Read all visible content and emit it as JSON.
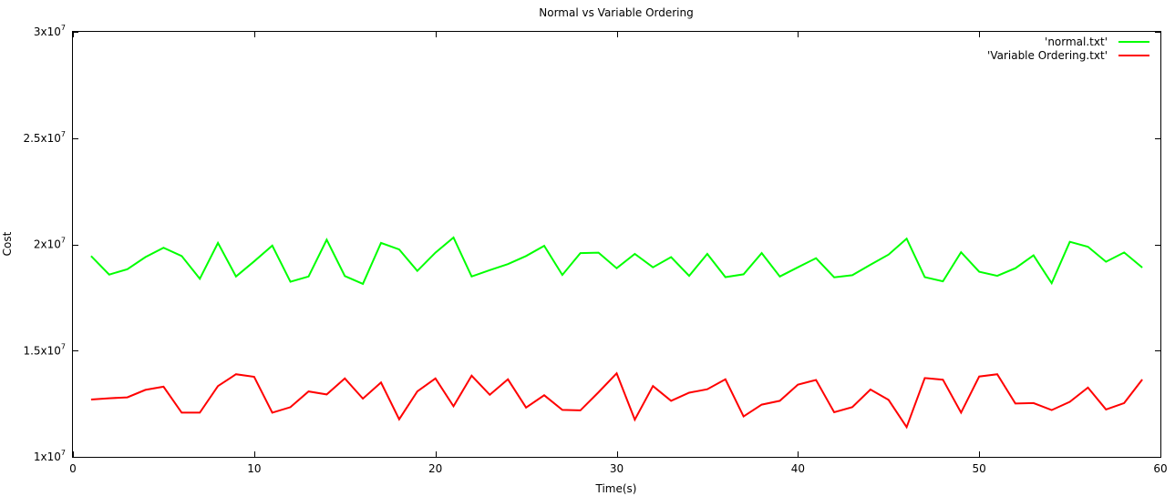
{
  "chart_data": {
    "type": "line",
    "title": "Normal vs Variable Ordering",
    "xlabel": "Time(s)",
    "ylabel": "Cost",
    "xlim": [
      0,
      60
    ],
    "ylim": [
      10000000,
      30000000
    ],
    "x_ticks": [
      {
        "value": 0,
        "label": "0"
      },
      {
        "value": 10,
        "label": "10"
      },
      {
        "value": 20,
        "label": "20"
      },
      {
        "value": 30,
        "label": "30"
      },
      {
        "value": 40,
        "label": "40"
      },
      {
        "value": 50,
        "label": "50"
      },
      {
        "value": 60,
        "label": "60"
      }
    ],
    "y_ticks": [
      {
        "value": 10000000,
        "mantissa": "1x10",
        "exp": "7"
      },
      {
        "value": 15000000,
        "mantissa": "1.5x10",
        "exp": "7"
      },
      {
        "value": 20000000,
        "mantissa": "2x10",
        "exp": "7"
      },
      {
        "value": 25000000,
        "mantissa": "2.5x10",
        "exp": "7"
      },
      {
        "value": 30000000,
        "mantissa": "3x10",
        "exp": "7"
      }
    ],
    "grid": false,
    "legend_position": "top-right",
    "series": [
      {
        "name": "'normal.txt'",
        "color": "#00ff00",
        "x": [
          1,
          2,
          3,
          4,
          5,
          6,
          7,
          8,
          9,
          10,
          11,
          12,
          13,
          14,
          15,
          16,
          17,
          18,
          19,
          20,
          21,
          22,
          23,
          24,
          25,
          26,
          27,
          28,
          29,
          30,
          31,
          32,
          33,
          34,
          35,
          36,
          37,
          38,
          39,
          40,
          41,
          42,
          43,
          44,
          45,
          46,
          47,
          48,
          49,
          50,
          51,
          52,
          53,
          54,
          55,
          56,
          57,
          58,
          59
        ],
        "values": [
          19450000,
          18580000,
          18830000,
          19400000,
          19840000,
          19450000,
          18380000,
          20070000,
          18490000,
          19200000,
          19940000,
          18240000,
          18490000,
          20220000,
          18510000,
          18140000,
          20070000,
          19760000,
          18750000,
          19610000,
          20320000,
          18490000,
          18790000,
          19070000,
          19450000,
          19930000,
          18560000,
          19590000,
          19610000,
          18880000,
          19550000,
          18920000,
          19400000,
          18520000,
          19550000,
          18460000,
          18590000,
          19590000,
          18490000,
          18920000,
          19350000,
          18450000,
          18550000,
          19040000,
          19520000,
          20270000,
          18460000,
          18260000,
          19630000,
          18710000,
          18520000,
          18880000,
          19480000,
          18170000,
          20120000,
          19890000,
          19180000,
          19620000,
          18910000
        ]
      },
      {
        "name": "'Variable Ordering.txt'",
        "color": "#ff0000",
        "x": [
          1,
          2,
          3,
          4,
          5,
          6,
          7,
          8,
          9,
          10,
          11,
          12,
          13,
          14,
          15,
          16,
          17,
          18,
          19,
          20,
          21,
          22,
          23,
          24,
          25,
          26,
          27,
          28,
          29,
          30,
          31,
          32,
          33,
          34,
          35,
          36,
          37,
          38,
          39,
          40,
          41,
          42,
          43,
          44,
          45,
          46,
          47,
          48,
          49,
          50,
          51,
          52,
          53,
          54,
          55,
          56,
          57,
          58,
          59
        ],
        "values": [
          12700000,
          12760000,
          12800000,
          13150000,
          13300000,
          12080000,
          12080000,
          13330000,
          13890000,
          13770000,
          12080000,
          12340000,
          13080000,
          12940000,
          13690000,
          12740000,
          13500000,
          11770000,
          13080000,
          13690000,
          12380000,
          13820000,
          12920000,
          13650000,
          12320000,
          12900000,
          12210000,
          12190000,
          13040000,
          13930000,
          11750000,
          13330000,
          12640000,
          13020000,
          13180000,
          13650000,
          11900000,
          12460000,
          12640000,
          13400000,
          13620000,
          12100000,
          12340000,
          13170000,
          12680000,
          11400000,
          13710000,
          13630000,
          12080000,
          13780000,
          13890000,
          12510000,
          12530000,
          12200000,
          12590000,
          13260000,
          12230000,
          12530000,
          13640000
        ]
      }
    ]
  }
}
